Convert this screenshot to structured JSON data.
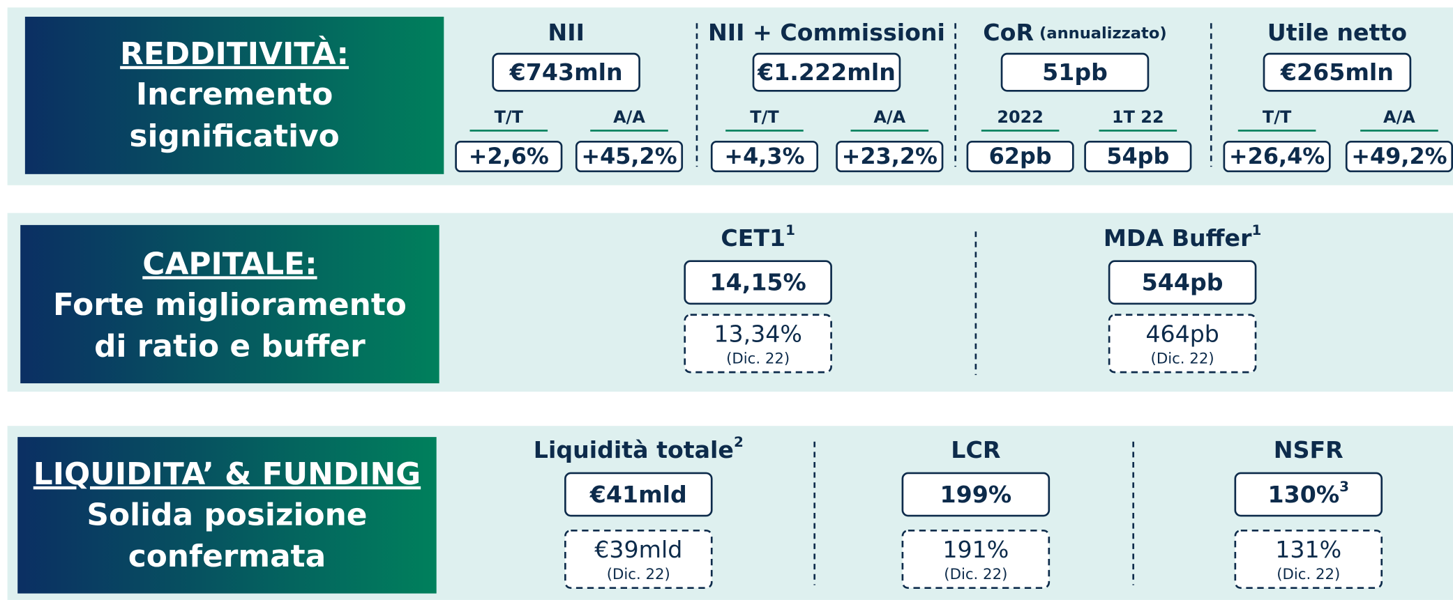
{
  "panels": [
    {
      "header": "REDDITIVITÀ:",
      "lines": [
        "Incremento",
        "significativo"
      ],
      "metrics": [
        {
          "title": "NII",
          "value": "€743mln",
          "subs": [
            {
              "label": "T/T",
              "value": "+2,6%"
            },
            {
              "label": "A/A",
              "value": "+45,2%"
            }
          ]
        },
        {
          "title": "NII + Commissioni",
          "value": "€1.222mln",
          "subs": [
            {
              "label": "T/T",
              "value": "+4,3%"
            },
            {
              "label": "A/A",
              "value": "+23,2%"
            }
          ]
        },
        {
          "title": "CoR",
          "note": "(annualizzato)",
          "value": "51pb",
          "subs": [
            {
              "label": "2022",
              "value": "62pb"
            },
            {
              "label": "1T 22",
              "value": "54pb"
            }
          ]
        },
        {
          "title": "Utile netto",
          "value": "€265mln",
          "subs": [
            {
              "label": "T/T",
              "value": "+26,4%"
            },
            {
              "label": "A/A",
              "value": "+49,2%"
            }
          ]
        }
      ]
    },
    {
      "header": "CAPITALE:",
      "lines": [
        "Forte miglioramento",
        "di ratio e buffer"
      ],
      "metrics": [
        {
          "title": "CET1",
          "sup": "1",
          "value": "14,15%",
          "previous": "13,34%",
          "previous_note": "(Dic. 22)"
        },
        {
          "title": "MDA Buffer",
          "sup": "1",
          "value": "544pb",
          "previous": "464pb",
          "previous_note": "(Dic. 22)"
        }
      ]
    },
    {
      "header": "LIQUIDITA’ & FUNDING",
      "lines": [
        "Solida posizione",
        "confermata"
      ],
      "metrics": [
        {
          "title": "Liquidità totale",
          "sup": "2",
          "value": "€41mld",
          "previous": "€39mld",
          "previous_note": "(Dic. 22)"
        },
        {
          "title": "LCR",
          "value": "199%",
          "previous": "191%",
          "previous_note": "(Dic. 22)"
        },
        {
          "title": "NSFR",
          "value": "130%",
          "value_sup": "3",
          "previous": "131%",
          "previous_note": "(Dic. 22)"
        }
      ]
    }
  ]
}
